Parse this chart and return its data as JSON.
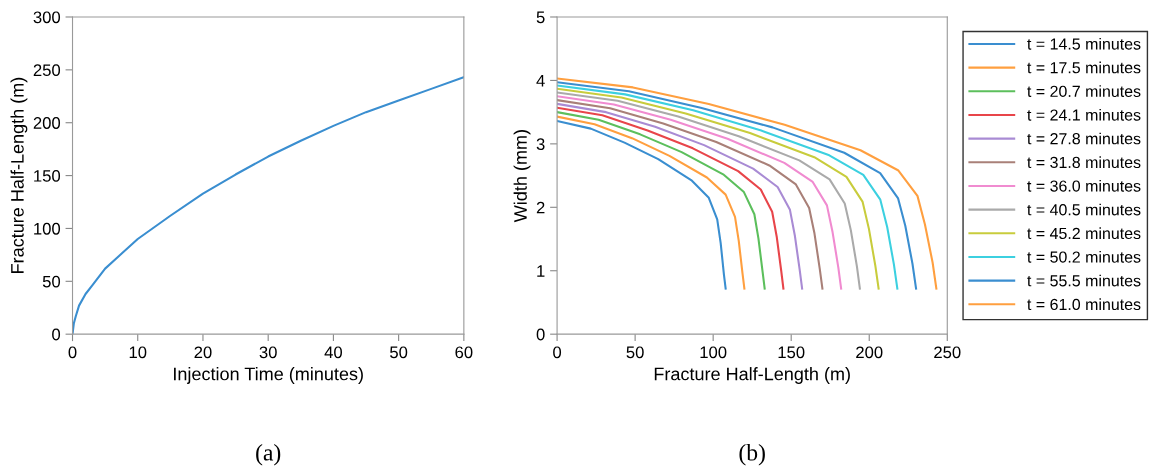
{
  "chart_data": [
    {
      "type": "line",
      "xlabel": "Injection Time (minutes)",
      "ylabel": "Fracture Half-Length (m)",
      "annotations": [
        "(a)"
      ],
      "xlim": [
        0,
        60
      ],
      "ylim": [
        0,
        300
      ],
      "xticks": [
        0,
        10,
        20,
        30,
        40,
        50,
        60
      ],
      "yticks": [
        0,
        50,
        100,
        150,
        200,
        250,
        300
      ],
      "grid": false,
      "legend": false,
      "series": [
        {
          "color": "#3a8ed0",
          "x": [
            0,
            0.2,
            0.5,
            1,
            2,
            3,
            5,
            7.5,
            10,
            15,
            20,
            25,
            30,
            35,
            40,
            45,
            50,
            55,
            60
          ],
          "values": [
            0,
            10,
            17,
            27,
            38,
            46,
            62,
            76,
            90,
            112,
            133,
            151,
            168,
            183,
            197,
            210,
            221,
            232,
            243
          ]
        }
      ]
    },
    {
      "type": "line",
      "xlabel": "Fracture Half-Length (m)",
      "ylabel": "Width (mm)",
      "annotations": [
        "(b)"
      ],
      "xlim": [
        0,
        250
      ],
      "ylim": [
        0,
        5
      ],
      "xticks": [
        0,
        50,
        100,
        150,
        200,
        250
      ],
      "yticks": [
        0,
        1,
        2,
        3,
        4,
        5
      ],
      "grid": false,
      "legend": "right",
      "series": [
        {
          "name": "t = 14.5 minutes",
          "color": "#3a8ed0",
          "x": [
            0,
            21.6,
            43.2,
            64.8,
            86.4,
            97.2,
            102.6,
            104.8,
            106.9,
            108
          ],
          "values": [
            3.36,
            3.24,
            3.02,
            2.76,
            2.42,
            2.15,
            1.81,
            1.44,
            0.94,
            0.72
          ]
        },
        {
          "name": "t = 17.5 minutes",
          "color": "#ff9f3f",
          "x": [
            0,
            24,
            48,
            72,
            96,
            108,
            114,
            116.4,
            118.8,
            120
          ],
          "values": [
            3.43,
            3.31,
            3.09,
            2.81,
            2.47,
            2.2,
            1.85,
            1.47,
            0.96,
            0.72
          ]
        },
        {
          "name": "t = 20.7 minutes",
          "color": "#5cbf5c",
          "x": [
            0,
            26.6,
            53.2,
            79.8,
            106.4,
            119.7,
            126.4,
            129.0,
            131.7,
            133
          ],
          "values": [
            3.5,
            3.38,
            3.15,
            2.87,
            2.52,
            2.24,
            1.89,
            1.51,
            0.98,
            0.72
          ]
        },
        {
          "name": "t = 24.1 minutes",
          "color": "#e8454a",
          "x": [
            0,
            29,
            58,
            87,
            116,
            130.5,
            137.8,
            140.7,
            143.6,
            145
          ],
          "values": [
            3.57,
            3.45,
            3.21,
            2.93,
            2.57,
            2.28,
            1.93,
            1.54,
            1.0,
            0.72
          ]
        },
        {
          "name": "t = 27.8 minutes",
          "color": "#a98bd4",
          "x": [
            0,
            31.4,
            62.8,
            94.2,
            125.6,
            141.3,
            149.2,
            152.3,
            155.4,
            157
          ],
          "values": [
            3.63,
            3.5,
            3.27,
            2.98,
            2.61,
            2.32,
            1.96,
            1.56,
            1.02,
            0.72
          ]
        },
        {
          "name": "t = 31.8 minutes",
          "color": "#a98078",
          "x": [
            0,
            34,
            68,
            102,
            136,
            153,
            161.5,
            164.9,
            168.3,
            170
          ],
          "values": [
            3.69,
            3.56,
            3.32,
            3.03,
            2.66,
            2.36,
            1.99,
            1.59,
            1.03,
            0.72
          ]
        },
        {
          "name": "t = 36.0 minutes",
          "color": "#f08bd0",
          "x": [
            0,
            36.4,
            72.8,
            109.2,
            145.6,
            163.8,
            172.9,
            176.5,
            180.2,
            182
          ],
          "values": [
            3.75,
            3.62,
            3.38,
            3.08,
            2.7,
            2.4,
            2.03,
            1.61,
            1.05,
            0.72
          ]
        },
        {
          "name": "t = 40.5 minutes",
          "color": "#aaaaaa",
          "x": [
            0,
            38.8,
            77.6,
            116.4,
            155.2,
            174.6,
            184.3,
            188.2,
            192.1,
            194
          ],
          "values": [
            3.81,
            3.68,
            3.43,
            3.12,
            2.74,
            2.44,
            2.06,
            1.64,
            1.07,
            0.72
          ]
        },
        {
          "name": "t = 45.2 minutes",
          "color": "#c8cc3c",
          "x": [
            0,
            41.2,
            82.4,
            123.6,
            164.8,
            185.4,
            195.7,
            199.8,
            203.9,
            206
          ],
          "values": [
            3.87,
            3.73,
            3.48,
            3.17,
            2.79,
            2.48,
            2.09,
            1.66,
            1.08,
            0.72
          ]
        },
        {
          "name": "t = 50.2 minutes",
          "color": "#3cd0e0",
          "x": [
            0,
            43.6,
            87.2,
            130.8,
            174.4,
            196.2,
            207.1,
            211.5,
            215.8,
            218
          ],
          "values": [
            3.92,
            3.78,
            3.53,
            3.21,
            2.82,
            2.51,
            2.12,
            1.69,
            1.1,
            0.72
          ]
        },
        {
          "name": "t = 55.5 minutes",
          "color": "#3a8ed0",
          "x": [
            0,
            46,
            92,
            138,
            184,
            207,
            218.5,
            223.1,
            227.7,
            230
          ],
          "values": [
            3.97,
            3.83,
            3.57,
            3.26,
            2.86,
            2.54,
            2.14,
            1.71,
            1.11,
            0.72
          ]
        },
        {
          "name": "t = 61.0 minutes",
          "color": "#ff9f3f",
          "x": [
            0,
            48.6,
            97.2,
            145.8,
            194.4,
            218.7,
            230.9,
            235.7,
            240.6,
            243
          ],
          "values": [
            4.03,
            3.89,
            3.63,
            3.3,
            2.9,
            2.58,
            2.18,
            1.73,
            1.13,
            0.72
          ]
        }
      ]
    }
  ]
}
